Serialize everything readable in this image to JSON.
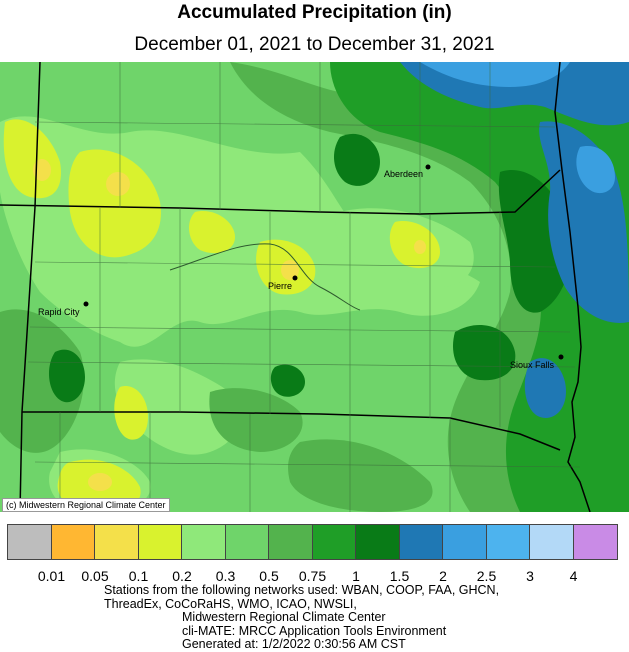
{
  "title": "Accumulated Precipitation (in)",
  "subtitle": "December 01, 2021 to December 31, 2021",
  "cities": [
    {
      "name": "Aberdeen"
    },
    {
      "name": "Pierre"
    },
    {
      "name": "Rapid City"
    },
    {
      "name": "Sioux Falls"
    }
  ],
  "credit": "(c) Midwestern Regional Climate Center",
  "legend": {
    "colors": [
      "#bdbdbd",
      "#ffb732",
      "#f4e04a",
      "#d9f22e",
      "#8fe87a",
      "#6fd46a",
      "#53b34d",
      "#1f9e27",
      "#097b17",
      "#1f78b4",
      "#3a9fe0",
      "#4db3ee",
      "#b3d9f7",
      "#c98be6"
    ],
    "labels": [
      "0.01",
      "0.05",
      "0.1",
      "0.2",
      "0.3",
      "0.5",
      "0.75",
      "1",
      "1.5",
      "2",
      "2.5",
      "3",
      "4"
    ]
  },
  "notes": {
    "line1": "Stations from the following networks used: WBAN, COOP, FAA, GHCN,",
    "line2": "ThreadEx, CoCoRaHS, WMO, ICAO, NWSLI,",
    "line3": "Midwestern Regional Climate Center",
    "line4": "cli-MATE: MRCC Application Tools Environment",
    "line5": "Generated at: 1/2/2022 0:30:56 AM CST"
  }
}
